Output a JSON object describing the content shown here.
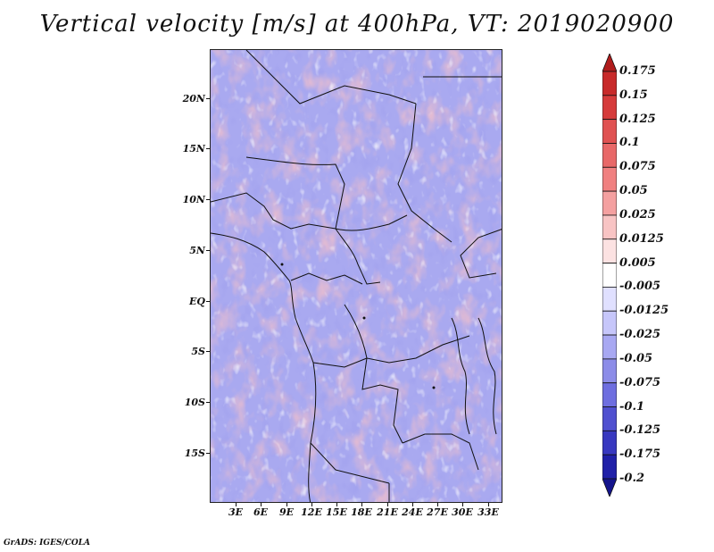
{
  "title": "Vertical velocity [m/s] at 400hPa, VT: 2019020900",
  "credit": "GrADS: IGES/COLA",
  "lat_labels": [
    "20N",
    "15N",
    "10N",
    "5N",
    "EQ",
    "5S",
    "10S",
    "15S"
  ],
  "lon_labels": [
    "3E",
    "6E",
    "9E",
    "12E",
    "15E",
    "18E",
    "21E",
    "24E",
    "27E",
    "30E",
    "33E"
  ],
  "colorbar": {
    "labels": [
      "0.175",
      "0.15",
      "0.125",
      "0.1",
      "0.075",
      "0.05",
      "0.025",
      "0.0125",
      "0.005",
      "-0.005",
      "-0.0125",
      "-0.025",
      "-0.05",
      "-0.075",
      "-0.1",
      "-0.125",
      "-0.175",
      "-0.2"
    ],
    "colors": [
      "#b01c1c",
      "#c82a2a",
      "#d63b3b",
      "#e05252",
      "#e86868",
      "#f08080",
      "#f4a0a0",
      "#f8c4c4",
      "#fce2e2",
      "#ffffff",
      "#e0e0ff",
      "#c6c6fa",
      "#a8a8f2",
      "#8c8ce8",
      "#6e6ee0",
      "#5050d0",
      "#3838c0",
      "#2020a8",
      "#14148c"
    ]
  }
}
